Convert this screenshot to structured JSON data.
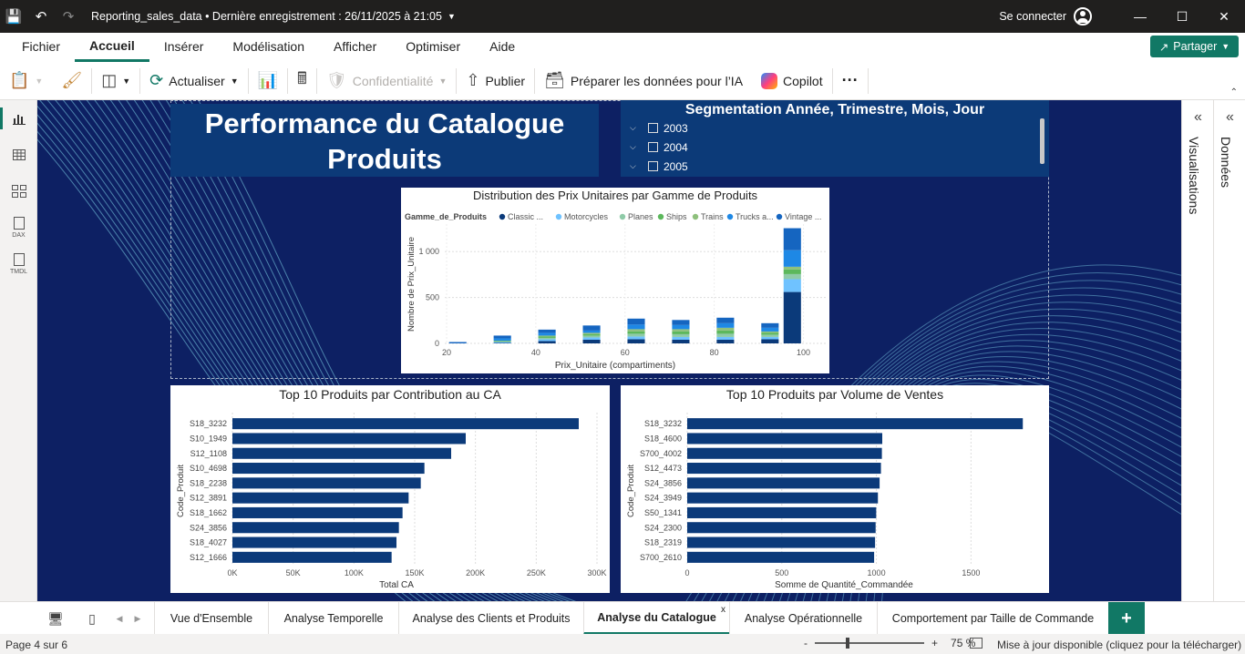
{
  "titlebar": {
    "file_title": "Reporting_sales_data • Dernière enregistrement : 26/11/2025 à 21:05",
    "connect_label": "Se connecter"
  },
  "menu": {
    "items": [
      "Fichier",
      "Accueil",
      "Insérer",
      "Modélisation",
      "Afficher",
      "Optimiser",
      "Aide"
    ],
    "active": "Accueil",
    "share_label": "Partager"
  },
  "toolbar": {
    "refresh_label": "Actualiser",
    "privacy_label": "Confidentialité",
    "publish_label": "Publier",
    "prepare_label": "Préparer les données pour l’IA",
    "copilot_label": "Copilot",
    "more_label": "···"
  },
  "leftrail": {
    "items": [
      "report-view",
      "table-view",
      "model-view",
      "DAX",
      "TMDL"
    ]
  },
  "report": {
    "title_line1": "Performance du Catalogue",
    "title_line2": "Produits",
    "slicer": {
      "title": "Segmentation Année, Trimestre, Mois, Jour",
      "items": [
        "2003",
        "2004",
        "2005"
      ]
    }
  },
  "chart_data": [
    {
      "type": "bar",
      "stacked": true,
      "title": "Distribution des Prix Unitaires par Gamme de Produits",
      "legend_title": "Gamme_de_Produits",
      "legend_labels": [
        "Classic ...",
        "Motorcycles",
        "Planes",
        "Ships",
        "Trains",
        "Trucks a...",
        "Vintage ..."
      ],
      "xlabel": "Prix_Unitaire (compartiments)",
      "ylabel": "Nombre de Prix_Unitaire",
      "x_ticks": [
        "20",
        "40",
        "60",
        "80",
        "100"
      ],
      "y_ticks": [
        "0",
        "500",
        "1 000"
      ],
      "ylim": [
        0,
        1300
      ],
      "bins": [
        25,
        30,
        35,
        40,
        45,
        50,
        55,
        60,
        65,
        70,
        75,
        80,
        85,
        90,
        95,
        100
      ],
      "legend_position": "top",
      "series": [
        {
          "name": "Classic Cars",
          "color": "#0b3a7a",
          "values": [
            0,
            0,
            5,
            0,
            25,
            0,
            40,
            0,
            45,
            0,
            40,
            0,
            40,
            0,
            45,
            560
          ]
        },
        {
          "name": "Motorcycles",
          "color": "#6fc2ff",
          "values": [
            0,
            0,
            10,
            0,
            20,
            0,
            25,
            0,
            30,
            0,
            30,
            0,
            30,
            0,
            25,
            140
          ]
        },
        {
          "name": "Planes",
          "color": "#8fcba8",
          "values": [
            0,
            0,
            5,
            0,
            15,
            0,
            20,
            0,
            30,
            0,
            30,
            0,
            35,
            0,
            25,
            55
          ]
        },
        {
          "name": "Ships",
          "color": "#5cb85c",
          "values": [
            0,
            0,
            5,
            0,
            15,
            0,
            15,
            0,
            25,
            0,
            30,
            0,
            35,
            0,
            20,
            50
          ]
        },
        {
          "name": "Trains",
          "color": "#8ec07c",
          "values": [
            0,
            0,
            5,
            0,
            10,
            0,
            15,
            0,
            25,
            0,
            25,
            0,
            30,
            0,
            15,
            30
          ]
        },
        {
          "name": "Trucks and Buses",
          "color": "#1e88e5",
          "values": [
            0,
            0,
            25,
            0,
            30,
            0,
            25,
            0,
            50,
            0,
            45,
            0,
            50,
            0,
            40,
            180
          ]
        },
        {
          "name": "Vintage Cars",
          "color": "#1565c0",
          "values": [
            0,
            0,
            30,
            0,
            35,
            0,
            55,
            0,
            65,
            0,
            55,
            0,
            60,
            0,
            50,
            240
          ]
        }
      ]
    },
    {
      "type": "bar",
      "orientation": "horizontal",
      "title": "Top 10 Produits par Contribution au CA",
      "xlabel": "Total CA",
      "ylabel": "Code_Produit",
      "categories": [
        "S18_3232",
        "S10_1949",
        "S12_1108",
        "S10_4698",
        "S18_2238",
        "S12_3891",
        "S18_1662",
        "S24_3856",
        "S18_4027",
        "S12_1666"
      ],
      "values": [
        285000,
        192000,
        180000,
        158000,
        155000,
        145000,
        140000,
        137000,
        135000,
        131000
      ],
      "x_ticks": [
        "0K",
        "50K",
        "100K",
        "150K",
        "200K",
        "250K",
        "300K"
      ],
      "xlim": [
        0,
        300000
      ],
      "color": "#0b3a7a"
    },
    {
      "type": "bar",
      "orientation": "horizontal",
      "title": "Top 10 Produits par Volume de Ventes",
      "xlabel": "Somme de Quantité_Commandée",
      "ylabel": "Code_Produit",
      "categories": [
        "S18_3232",
        "S18_4600",
        "S700_4002",
        "S12_4473",
        "S24_3856",
        "S24_3949",
        "S50_1341",
        "S24_2300",
        "S18_2319",
        "S700_2610"
      ],
      "values": [
        1774,
        1031,
        1029,
        1024,
        1017,
        1008,
        999,
        996,
        993,
        988
      ],
      "x_ticks": [
        "0",
        "500",
        "1000",
        "1500"
      ],
      "xlim": [
        0,
        1850
      ],
      "color": "#0b3a7a"
    }
  ],
  "right_panels": {
    "visualisations": "Visualisations",
    "donnees": "Données"
  },
  "tabs": {
    "items": [
      "Vue d'Ensemble",
      "Analyse Temporelle",
      "Analyse des Clients et Produits",
      "Analyse du Catalogue",
      "Analyse Opérationnelle",
      "Comportement par Taille de Commande"
    ],
    "active": "Analyse du Catalogue",
    "close_glyph": "x",
    "add_glyph": "+"
  },
  "status": {
    "page": "Page 4 sur 6",
    "zoom": "75 %",
    "update": "Mise à jour disponible (cliquez pour la télécharger)",
    "zoom_minus": "-",
    "zoom_plus": "+"
  }
}
